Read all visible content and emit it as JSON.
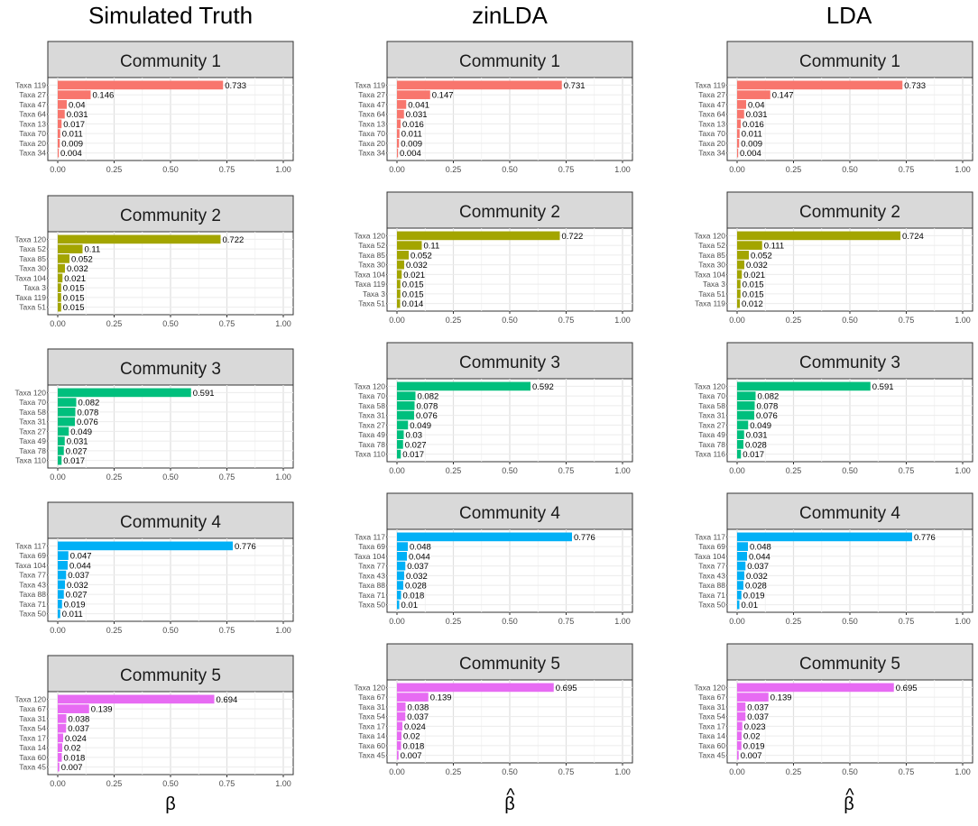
{
  "figure": {
    "columns": [
      {
        "title": "Simulated Truth",
        "xlabel": "β",
        "xlabel_hat": false
      },
      {
        "title": "zinLDA",
        "xlabel": "β",
        "xlabel_hat": true
      },
      {
        "title": "LDA",
        "xlabel": "β",
        "xlabel_hat": true
      }
    ],
    "x_ticks": [
      "0.00",
      "0.25",
      "0.50",
      "0.75",
      "1.00"
    ]
  },
  "chart_data": {
    "type": "bar",
    "orientation": "horizontal",
    "xlim": [
      0,
      1
    ],
    "grid": true,
    "community_colors": [
      "#F8766D",
      "#A3A500",
      "#00BF7D",
      "#00B0F6",
      "#E76BF3"
    ],
    "panels": [
      [
        {
          "title": "Community 1",
          "labels": [
            "Taxa 119",
            "Taxa 27",
            "Taxa 47",
            "Taxa 64",
            "Taxa 13",
            "Taxa 70",
            "Taxa 20",
            "Taxa 34"
          ],
          "values": [
            0.733,
            0.146,
            0.04,
            0.031,
            0.017,
            0.011,
            0.009,
            0.004
          ],
          "display": [
            "0.733",
            "0.146",
            "0.04",
            "0.031",
            "0.017",
            "0.011",
            "0.009",
            "0.004"
          ]
        },
        {
          "title": "Community 2",
          "labels": [
            "Taxa 120",
            "Taxa 52",
            "Taxa 85",
            "Taxa 30",
            "Taxa 104",
            "Taxa 3",
            "Taxa 119",
            "Taxa 51"
          ],
          "values": [
            0.722,
            0.11,
            0.052,
            0.032,
            0.021,
            0.015,
            0.015,
            0.015
          ],
          "display": [
            "0.722",
            "0.11",
            "0.052",
            "0.032",
            "0.021",
            "0.015",
            "0.015",
            "0.015"
          ]
        },
        {
          "title": "Community 3",
          "labels": [
            "Taxa 120",
            "Taxa 70",
            "Taxa 58",
            "Taxa 31",
            "Taxa 27",
            "Taxa 49",
            "Taxa 78",
            "Taxa 110"
          ],
          "values": [
            0.591,
            0.082,
            0.078,
            0.076,
            0.049,
            0.031,
            0.027,
            0.017
          ],
          "display": [
            "0.591",
            "0.082",
            "0.078",
            "0.076",
            "0.049",
            "0.031",
            "0.027",
            "0.017"
          ]
        },
        {
          "title": "Community 4",
          "labels": [
            "Taxa 117",
            "Taxa 69",
            "Taxa 104",
            "Taxa 77",
            "Taxa 43",
            "Taxa 88",
            "Taxa 71",
            "Taxa 50"
          ],
          "values": [
            0.776,
            0.047,
            0.044,
            0.037,
            0.032,
            0.027,
            0.019,
            0.011
          ],
          "display": [
            "0.776",
            "0.047",
            "0.044",
            "0.037",
            "0.032",
            "0.027",
            "0.019",
            "0.011"
          ]
        },
        {
          "title": "Community 5",
          "labels": [
            "Taxa 120",
            "Taxa 67",
            "Taxa 31",
            "Taxa 54",
            "Taxa 17",
            "Taxa 14",
            "Taxa 60",
            "Taxa 45"
          ],
          "values": [
            0.694,
            0.139,
            0.038,
            0.037,
            0.024,
            0.02,
            0.018,
            0.007
          ],
          "display": [
            "0.694",
            "0.139",
            "0.038",
            "0.037",
            "0.024",
            "0.02",
            "0.018",
            "0.007"
          ]
        }
      ],
      [
        {
          "title": "Community 1",
          "labels": [
            "Taxa 119",
            "Taxa 27",
            "Taxa 47",
            "Taxa 64",
            "Taxa 13",
            "Taxa 70",
            "Taxa 20",
            "Taxa 34"
          ],
          "values": [
            0.731,
            0.147,
            0.041,
            0.031,
            0.016,
            0.011,
            0.009,
            0.004
          ],
          "display": [
            "0.731",
            "0.147",
            "0.041",
            "0.031",
            "0.016",
            "0.011",
            "0.009",
            "0.004"
          ]
        },
        {
          "title": "Community 2",
          "labels": [
            "Taxa 120",
            "Taxa 52",
            "Taxa 85",
            "Taxa 30",
            "Taxa 104",
            "Taxa 119",
            "Taxa 3",
            "Taxa 51"
          ],
          "values": [
            0.722,
            0.11,
            0.052,
            0.032,
            0.021,
            0.015,
            0.015,
            0.014
          ],
          "display": [
            "0.722",
            "0.11",
            "0.052",
            "0.032",
            "0.021",
            "0.015",
            "0.015",
            "0.014"
          ]
        },
        {
          "title": "Community 3",
          "labels": [
            "Taxa 120",
            "Taxa 70",
            "Taxa 58",
            "Taxa 31",
            "Taxa 27",
            "Taxa 49",
            "Taxa 78",
            "Taxa 110"
          ],
          "values": [
            0.592,
            0.082,
            0.078,
            0.076,
            0.049,
            0.03,
            0.027,
            0.017
          ],
          "display": [
            "0.592",
            "0.082",
            "0.078",
            "0.076",
            "0.049",
            "0.03",
            "0.027",
            "0.017"
          ]
        },
        {
          "title": "Community 4",
          "labels": [
            "Taxa 117",
            "Taxa 69",
            "Taxa 104",
            "Taxa 77",
            "Taxa 43",
            "Taxa 88",
            "Taxa 71",
            "Taxa 50"
          ],
          "values": [
            0.776,
            0.048,
            0.044,
            0.037,
            0.032,
            0.028,
            0.018,
            0.01
          ],
          "display": [
            "0.776",
            "0.048",
            "0.044",
            "0.037",
            "0.032",
            "0.028",
            "0.018",
            "0.01"
          ]
        },
        {
          "title": "Community 5",
          "labels": [
            "Taxa 120",
            "Taxa 67",
            "Taxa 31",
            "Taxa 54",
            "Taxa 17",
            "Taxa 14",
            "Taxa 60",
            "Taxa 45"
          ],
          "values": [
            0.695,
            0.139,
            0.038,
            0.037,
            0.024,
            0.02,
            0.018,
            0.007
          ],
          "display": [
            "0.695",
            "0.139",
            "0.038",
            "0.037",
            "0.024",
            "0.02",
            "0.018",
            "0.007"
          ]
        }
      ],
      [
        {
          "title": "Community 1",
          "labels": [
            "Taxa 119",
            "Taxa 27",
            "Taxa 47",
            "Taxa 64",
            "Taxa 13",
            "Taxa 70",
            "Taxa 20",
            "Taxa 34"
          ],
          "values": [
            0.733,
            0.147,
            0.04,
            0.031,
            0.016,
            0.011,
            0.009,
            0.004
          ],
          "display": [
            "0.733",
            "0.147",
            "0.04",
            "0.031",
            "0.016",
            "0.011",
            "0.009",
            "0.004"
          ]
        },
        {
          "title": "Community 2",
          "labels": [
            "Taxa 120",
            "Taxa 52",
            "Taxa 85",
            "Taxa 30",
            "Taxa 104",
            "Taxa 3",
            "Taxa 51",
            "Taxa 119"
          ],
          "values": [
            0.724,
            0.111,
            0.052,
            0.032,
            0.021,
            0.015,
            0.015,
            0.012
          ],
          "display": [
            "0.724",
            "0.111",
            "0.052",
            "0.032",
            "0.021",
            "0.015",
            "0.015",
            "0.012"
          ]
        },
        {
          "title": "Community 3",
          "labels": [
            "Taxa 120",
            "Taxa 70",
            "Taxa 58",
            "Taxa 31",
            "Taxa 27",
            "Taxa 49",
            "Taxa 78",
            "Taxa 116"
          ],
          "values": [
            0.591,
            0.082,
            0.078,
            0.076,
            0.049,
            0.031,
            0.028,
            0.017
          ],
          "display": [
            "0.591",
            "0.082",
            "0.078",
            "0.076",
            "0.049",
            "0.031",
            "0.028",
            "0.017"
          ]
        },
        {
          "title": "Community 4",
          "labels": [
            "Taxa 117",
            "Taxa 69",
            "Taxa 104",
            "Taxa 77",
            "Taxa 43",
            "Taxa 88",
            "Taxa 71",
            "Taxa 50"
          ],
          "values": [
            0.776,
            0.048,
            0.044,
            0.037,
            0.032,
            0.028,
            0.019,
            0.01
          ],
          "display": [
            "0.776",
            "0.048",
            "0.044",
            "0.037",
            "0.032",
            "0.028",
            "0.019",
            "0.01"
          ]
        },
        {
          "title": "Community 5",
          "labels": [
            "Taxa 120",
            "Taxa 67",
            "Taxa 31",
            "Taxa 54",
            "Taxa 17",
            "Taxa 14",
            "Taxa 60",
            "Taxa 45"
          ],
          "values": [
            0.695,
            0.139,
            0.037,
            0.037,
            0.023,
            0.02,
            0.019,
            0.007
          ],
          "display": [
            "0.695",
            "0.139",
            "0.037",
            "0.037",
            "0.023",
            "0.02",
            "0.019",
            "0.007"
          ]
        }
      ]
    ]
  }
}
